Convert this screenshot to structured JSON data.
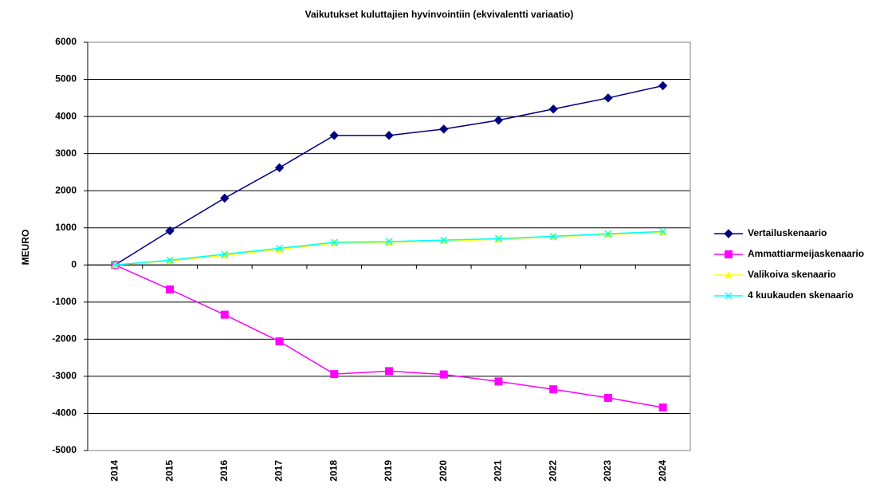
{
  "chart_data": {
    "type": "line",
    "title": "Vaikutukset kuluttajien hyvinvointiin (ekvivalentti variaatio)",
    "y_label": "MEURO",
    "categories": [
      "2014",
      "2015",
      "2016",
      "2017",
      "2018",
      "2019",
      "2020",
      "2021",
      "2022",
      "2023",
      "2024"
    ],
    "series": [
      {
        "name": "Vertailuskenaario",
        "color": "#000080",
        "marker": "diamond",
        "values": [
          0,
          920,
          1800,
          2620,
          3490,
          3490,
          3660,
          3900,
          4200,
          4500,
          4830
        ]
      },
      {
        "name": "Ammattiarmeijaskenaario",
        "color": "#ff00ff",
        "marker": "square",
        "values": [
          0,
          -660,
          -1340,
          -2060,
          -2940,
          -2860,
          -2950,
          -3140,
          -3350,
          -3580,
          -3840
        ]
      },
      {
        "name": "Valikoiva skenaario",
        "color": "#ffff00",
        "marker": "triangle",
        "values": [
          0,
          110,
          260,
          420,
          590,
          610,
          650,
          690,
          760,
          820,
          880
        ]
      },
      {
        "name": "4 kuukauden skenaario",
        "color": "#00ffff",
        "marker": "x",
        "values": [
          0,
          130,
          290,
          450,
          610,
          630,
          670,
          710,
          770,
          840,
          900
        ]
      }
    ],
    "ylim": [
      -5000,
      6000
    ],
    "yticks": [
      -5000,
      -4000,
      -3000,
      -2000,
      -1000,
      0,
      1000,
      2000,
      3000,
      4000,
      5000,
      6000
    ],
    "grid": true,
    "legend": "right"
  }
}
